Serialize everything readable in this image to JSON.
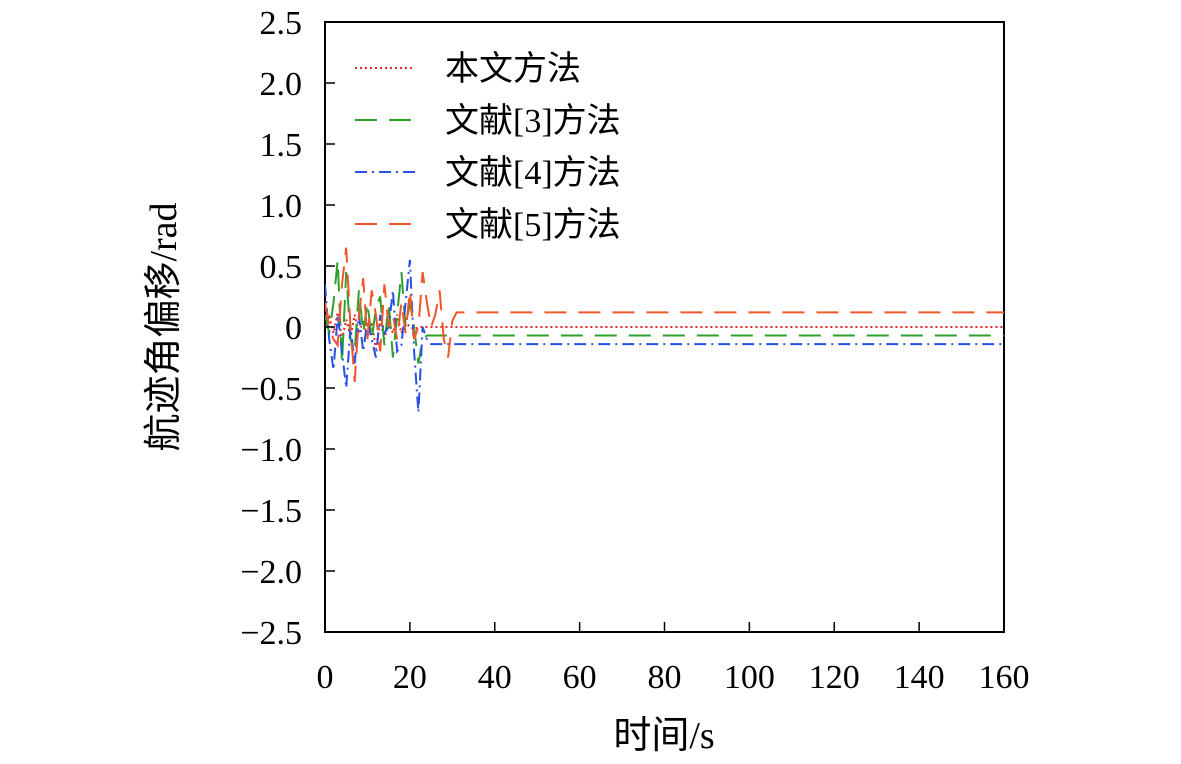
{
  "chart_data": {
    "type": "line",
    "xlabel": "时间/s",
    "ylabel": "航迹角偏移/rad",
    "xlim": [
      0,
      160
    ],
    "ylim": [
      -2.5,
      2.5
    ],
    "x_ticks": [
      "0",
      "20",
      "40",
      "60",
      "80",
      "100",
      "120",
      "140",
      "160"
    ],
    "y_ticks": [
      "2.5",
      "2.0",
      "1.5",
      "1.0",
      "0.5",
      "0",
      "−0.5",
      "−1.0",
      "−1.5",
      "−2.0",
      "−2.5"
    ],
    "grid": false,
    "legend_position": "top-left",
    "series": [
      {
        "name": "本文方法",
        "color": "#e8202a",
        "dash": "dotted",
        "x": [
          0,
          1,
          2,
          3,
          4,
          5,
          6,
          7,
          8,
          9,
          10,
          11,
          12,
          13,
          14,
          15,
          16,
          17,
          18,
          19,
          20,
          21,
          22,
          23,
          24,
          25,
          160
        ],
        "y": [
          0.0,
          0.08,
          -0.05,
          0.12,
          -0.1,
          0.06,
          -0.08,
          0.1,
          -0.05,
          0.05,
          -0.08,
          0.04,
          -0.18,
          0.06,
          -0.1,
          0.05,
          -0.05,
          0.1,
          -0.05,
          0.04,
          0.0,
          -0.02,
          0.0,
          0.0,
          0.0,
          0.0,
          0.0
        ]
      },
      {
        "name": "文献[3]方法",
        "color": "#2ca02c",
        "dash": "dashed",
        "x": [
          0,
          1,
          2,
          3,
          4,
          5,
          6,
          7,
          8,
          9,
          10,
          11,
          12,
          13,
          14,
          15,
          16,
          17,
          18,
          19,
          20,
          21,
          22,
          23,
          24,
          25,
          160
        ],
        "y": [
          0.1,
          -0.05,
          0.2,
          0.55,
          -0.3,
          0.45,
          -0.1,
          -0.2,
          0.3,
          -0.05,
          0.2,
          -0.1,
          0.15,
          0.25,
          -0.15,
          0.2,
          -0.25,
          0.1,
          0.45,
          0.0,
          0.2,
          0.0,
          -0.3,
          -0.1,
          -0.07,
          -0.07,
          -0.07
        ]
      },
      {
        "name": "文献[4]方法",
        "color": "#2850e6",
        "dash": "dashdot",
        "x": [
          0,
          1,
          2,
          3,
          4,
          5,
          6,
          7,
          8,
          9,
          10,
          11,
          12,
          13,
          14,
          15,
          16,
          17,
          18,
          19,
          20,
          21,
          22,
          23,
          24,
          25,
          26,
          160
        ],
        "y": [
          0.35,
          -0.1,
          -0.35,
          0.1,
          -0.2,
          -0.5,
          0.0,
          -0.3,
          0.1,
          -0.2,
          0.05,
          -0.1,
          -0.25,
          0.1,
          -0.05,
          0.0,
          0.3,
          -0.2,
          -0.15,
          0.2,
          0.55,
          -0.2,
          -0.7,
          0.0,
          -0.1,
          -0.14,
          -0.14,
          -0.14
        ]
      },
      {
        "name": "文献[5]方法",
        "color": "#f0562a",
        "dash": "dashed",
        "x": [
          0,
          1,
          2,
          3,
          4,
          5,
          6,
          7,
          8,
          9,
          10,
          11,
          12,
          13,
          14,
          15,
          16,
          17,
          18,
          19,
          20,
          21,
          22,
          23,
          24,
          25,
          26,
          27,
          28,
          29,
          30,
          31,
          160
        ],
        "y": [
          0.2,
          0.0,
          -0.1,
          -0.15,
          0.35,
          0.65,
          0.0,
          -0.45,
          0.1,
          0.4,
          -0.1,
          0.3,
          0.1,
          -0.2,
          0.35,
          0.0,
          0.1,
          -0.1,
          0.2,
          -0.05,
          0.3,
          -0.1,
          0.0,
          0.45,
          0.2,
          0.0,
          0.1,
          0.3,
          -0.1,
          -0.25,
          0.05,
          0.12,
          0.12
        ]
      }
    ]
  }
}
